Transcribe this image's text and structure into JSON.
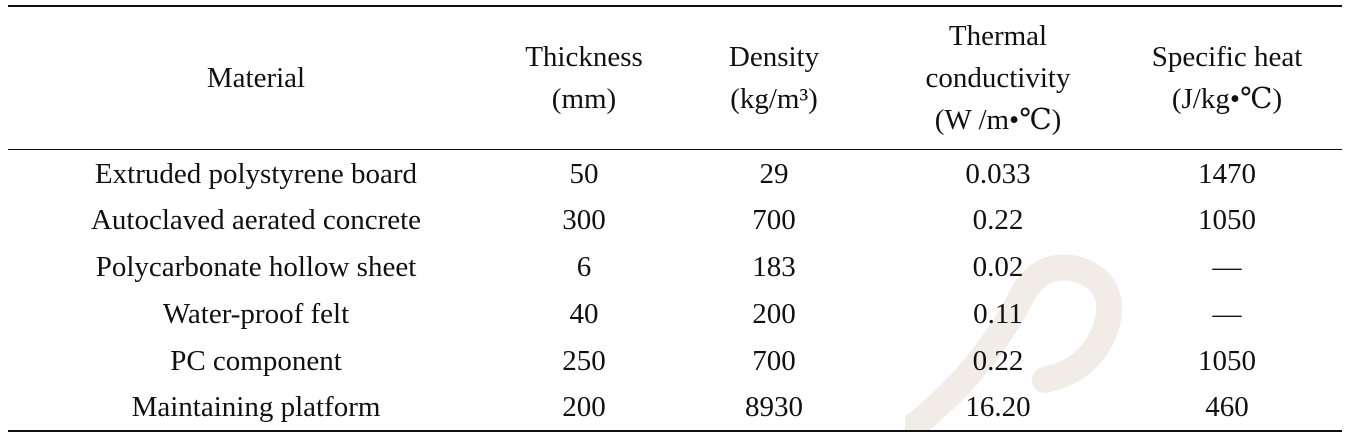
{
  "table": {
    "headers": [
      {
        "lines": [
          "Material"
        ]
      },
      {
        "lines": [
          "Thickness",
          "(mm)"
        ]
      },
      {
        "lines": [
          "Density",
          "(kg/m³)"
        ]
      },
      {
        "lines": [
          "Thermal",
          "conductivity",
          "(W /m•℃)"
        ]
      },
      {
        "lines": [
          "Specific heat",
          "(J/kg•℃)"
        ]
      }
    ],
    "rows": [
      [
        "Extruded polystyrene board",
        "50",
        "29",
        "0.033",
        "1470"
      ],
      [
        "Autoclaved aerated concrete",
        "300",
        "700",
        "0.22",
        "1050"
      ],
      [
        "Polycarbonate hollow sheet",
        "6",
        "183",
        "0.02",
        "—"
      ],
      [
        "Water-proof felt",
        "40",
        "200",
        "0.11",
        "—"
      ],
      [
        "PC component",
        "250",
        "700",
        "0.22",
        "1050"
      ],
      [
        "Maintaining platform",
        "200",
        "8930",
        "16.20",
        "460"
      ]
    ]
  }
}
